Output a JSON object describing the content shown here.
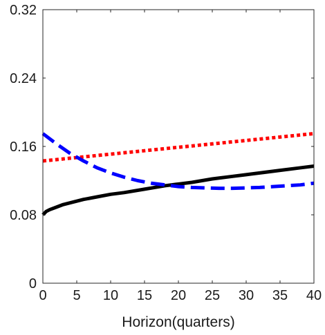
{
  "chart_data": {
    "type": "line",
    "title": "",
    "xlabel": "Horizon(quarters)",
    "ylabel": "",
    "xlim": [
      0,
      40
    ],
    "ylim": [
      0,
      0.32
    ],
    "xticks": [
      0,
      5,
      10,
      15,
      20,
      25,
      30,
      35,
      40
    ],
    "yticks": [
      0,
      0.08,
      0.16,
      0.24,
      0.32
    ],
    "ytick_labels": [
      "0",
      "0.08",
      "0.16",
      "0.24",
      "0.32"
    ],
    "grid": false,
    "legend": "none",
    "series": [
      {
        "color": "#000000",
        "style": "solid",
        "x": [
          0,
          0.5,
          1,
          2,
          3,
          4,
          5,
          6,
          8,
          10,
          12,
          15,
          18,
          20,
          22,
          25,
          28,
          30,
          32,
          35,
          38,
          40
        ],
        "y": [
          0.08,
          0.084,
          0.086,
          0.089,
          0.092,
          0.094,
          0.096,
          0.098,
          0.101,
          0.104,
          0.106,
          0.11,
          0.114,
          0.116,
          0.118,
          0.122,
          0.125,
          0.127,
          0.129,
          0.132,
          0.135,
          0.137
        ]
      },
      {
        "color": "#ff0000",
        "style": "dotted",
        "x": [
          0,
          5,
          10,
          15,
          20,
          25,
          30,
          35,
          40
        ],
        "y": [
          0.143,
          0.147,
          0.151,
          0.155,
          0.159,
          0.163,
          0.167,
          0.171,
          0.175
        ]
      },
      {
        "color": "#0000ff",
        "style": "dashed",
        "x": [
          0,
          2,
          4,
          6,
          8,
          10,
          12,
          14,
          16,
          18,
          20,
          22,
          24,
          26,
          28,
          30,
          32,
          34,
          36,
          38,
          40
        ],
        "y": [
          0.175,
          0.163,
          0.152,
          0.143,
          0.135,
          0.129,
          0.124,
          0.12,
          0.117,
          0.115,
          0.113,
          0.112,
          0.1115,
          0.111,
          0.111,
          0.1115,
          0.112,
          0.113,
          0.114,
          0.115,
          0.117
        ]
      }
    ]
  }
}
